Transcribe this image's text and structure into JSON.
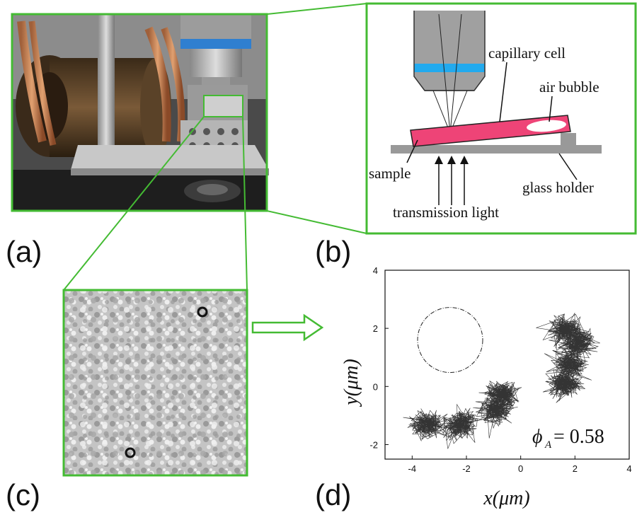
{
  "panels": {
    "a": {
      "letter": "(a)"
    },
    "b": {
      "letter": "(b)",
      "labels": {
        "capillary_cell": "capillary cell",
        "air_bubble": "air bubble",
        "sample": "sample",
        "glass_holder": "glass holder",
        "transmission_light": "transmission light"
      }
    },
    "c": {
      "letter": "(c)"
    },
    "d": {
      "letter": "(d)",
      "annotation": "ϕ",
      "annotation_sub": "A",
      "annotation_value": "= 0.58"
    }
  },
  "colors": {
    "frame_green": "#44bb33",
    "capillary_pink": "#ee4477",
    "objective_blue": "#22aaee",
    "objective_gray": "#a0a0a0"
  },
  "chart_data": {
    "type": "scatter",
    "xlabel": "x(μm)",
    "ylabel": "y(μm)",
    "xlim": [
      -5,
      4
    ],
    "ylim": [
      -2.5,
      4
    ],
    "xticks": [
      -4,
      -2,
      0,
      2,
      4
    ],
    "yticks": [
      -2,
      0,
      2,
      4
    ],
    "grid": false,
    "trajectories": [
      {
        "clusters": [
          [
            -3.6,
            -1.3
          ],
          [
            -2.4,
            -1.4
          ],
          [
            -1.0,
            -0.9
          ],
          [
            -0.7,
            -0.3
          ]
        ]
      },
      {
        "clusters": [
          [
            1.6,
            2.0
          ],
          [
            2.1,
            1.6
          ],
          [
            1.9,
            0.9
          ],
          [
            1.6,
            0.1
          ]
        ]
      }
    ],
    "circle": {
      "center": [
        -2.6,
        1.6
      ],
      "radius": 1.2,
      "style": "dash-dot"
    }
  }
}
